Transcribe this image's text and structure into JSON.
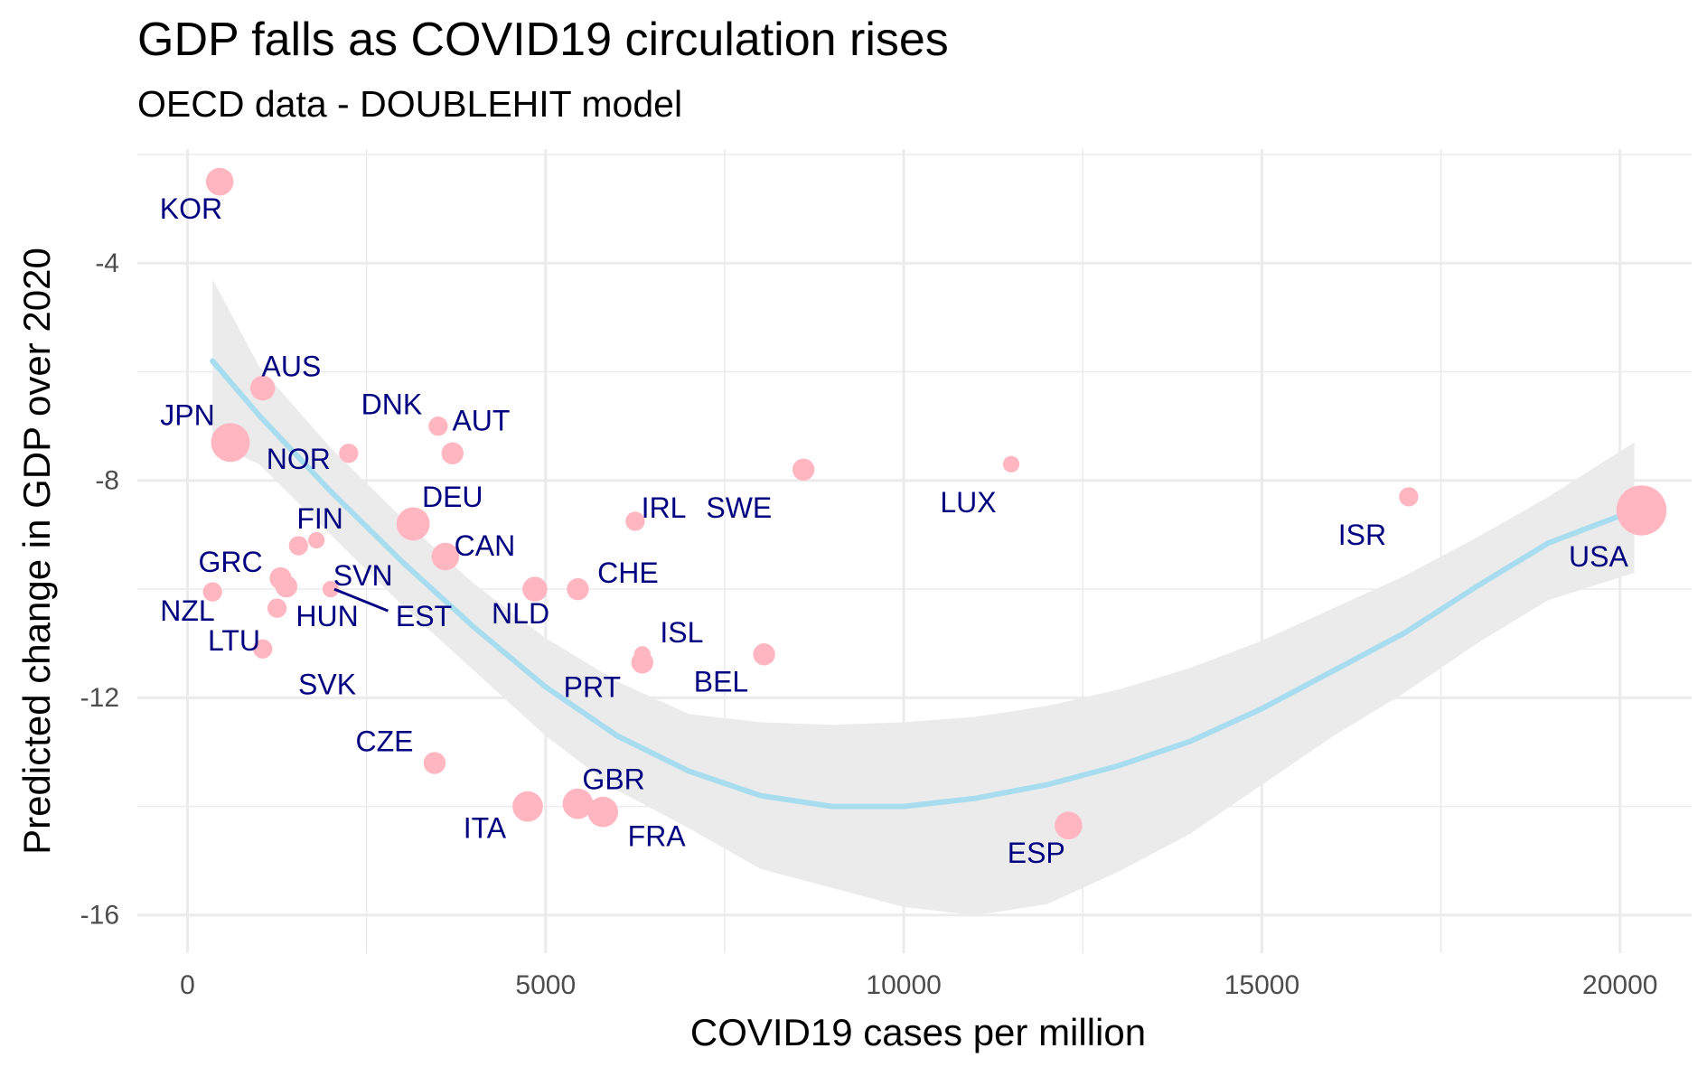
{
  "chart_data": {
    "type": "scatter",
    "title": "GDP falls as COVID19 circulation rises",
    "subtitle": "OECD data - DOUBLEHIT model",
    "xlabel": "COVID19 cases per million",
    "ylabel": "Predicted change in GDP over 2020",
    "xlim": [
      -700,
      21000
    ],
    "ylim": [
      -16.7,
      -1.9
    ],
    "x_ticks": [
      0,
      5000,
      10000,
      15000,
      20000
    ],
    "y_ticks": [
      -4,
      -8,
      -12,
      -16
    ],
    "x_tick_labels": [
      "0",
      "5000",
      "10000",
      "15000",
      "20000"
    ],
    "y_tick_labels": [
      "-4",
      "-8",
      "-12",
      "-16"
    ],
    "grid": true,
    "colors": {
      "point": "#ffb6c1",
      "label": "#000080",
      "smooth": "#a8dcef",
      "band": "#ebebeb",
      "grid": "#ebebeb"
    },
    "points": [
      {
        "code": "KOR",
        "x": 450,
        "y": -2.5,
        "size": 6
      },
      {
        "code": "AUS",
        "x": 1050,
        "y": -6.3,
        "size": 5
      },
      {
        "code": "JPN",
        "x": 600,
        "y": -7.3,
        "size": 10
      },
      {
        "code": "DNK",
        "x": 3500,
        "y": -7.0,
        "size": 3
      },
      {
        "code": "NOR",
        "x": 2250,
        "y": -7.5,
        "size": 3
      },
      {
        "code": "AUT",
        "x": 3700,
        "y": -7.5,
        "size": 4
      },
      {
        "code": "DEU",
        "x": 3150,
        "y": -8.8,
        "size": 8
      },
      {
        "code": "FIN",
        "x": 1550,
        "y": -9.2,
        "size": 3
      },
      {
        "code": "FIN2",
        "x": 1800,
        "y": -9.1,
        "size": 2
      },
      {
        "code": "CAN",
        "x": 3600,
        "y": -9.4,
        "size": 6
      },
      {
        "code": "GRC",
        "x": 1300,
        "y": -9.8,
        "size": 4
      },
      {
        "code": "GRC2",
        "x": 1380,
        "y": -9.95,
        "size": 4
      },
      {
        "code": "SVN",
        "x": 2000,
        "y": -10.0,
        "size": 2
      },
      {
        "code": "NZL",
        "x": 350,
        "y": -10.05,
        "size": 3
      },
      {
        "code": "HUN",
        "x": 1250,
        "y": -10.35,
        "size": 3
      },
      {
        "code": "LTU",
        "x": 1050,
        "y": -11.1,
        "size": 3
      },
      {
        "code": "NLD",
        "x": 4850,
        "y": -10.0,
        "size": 5
      },
      {
        "code": "CHE",
        "x": 5450,
        "y": -10.0,
        "size": 4
      },
      {
        "code": "IRL",
        "x": 6250,
        "y": -8.75,
        "size": 3
      },
      {
        "code": "SWE",
        "x": 8600,
        "y": -7.8,
        "size": 4
      },
      {
        "code": "LUX",
        "x": 11500,
        "y": -7.7,
        "size": 2
      },
      {
        "code": "ISR",
        "x": 17050,
        "y": -8.3,
        "size": 3
      },
      {
        "code": "USA",
        "x": 20300,
        "y": -8.55,
        "size": 14
      },
      {
        "code": "ISL",
        "x": 6350,
        "y": -11.2,
        "size": 2
      },
      {
        "code": "PRT",
        "x": 6350,
        "y": -11.35,
        "size": 4
      },
      {
        "code": "BEL",
        "x": 8050,
        "y": -11.2,
        "size": 4
      },
      {
        "code": "CZE",
        "x": 3450,
        "y": -13.2,
        "size": 4
      },
      {
        "code": "ITA",
        "x": 4750,
        "y": -14.0,
        "size": 7
      },
      {
        "code": "GBR",
        "x": 5450,
        "y": -13.95,
        "size": 7
      },
      {
        "code": "FRA",
        "x": 5800,
        "y": -14.1,
        "size": 7
      },
      {
        "code": "ESP",
        "x": 12300,
        "y": -14.35,
        "size": 6
      }
    ],
    "labels": [
      {
        "text": "KOR",
        "x": 50,
        "y": -3.0
      },
      {
        "text": "AUS",
        "x": 1450,
        "y": -5.9
      },
      {
        "text": "JPN",
        "x": 0,
        "y": -6.8
      },
      {
        "text": "DNK",
        "x": 2850,
        "y": -6.6
      },
      {
        "text": "NOR",
        "x": 1550,
        "y": -7.6
      },
      {
        "text": "AUT",
        "x": 4100,
        "y": -6.9
      },
      {
        "text": "DEU",
        "x": 3700,
        "y": -8.3
      },
      {
        "text": "FIN",
        "x": 1850,
        "y": -8.7
      },
      {
        "text": "CAN",
        "x": 4150,
        "y": -9.2
      },
      {
        "text": "GRC",
        "x": 600,
        "y": -9.5
      },
      {
        "text": "SVN",
        "x": 2450,
        "y": -9.75
      },
      {
        "text": "NZL",
        "x": 0,
        "y": -10.4
      },
      {
        "text": "HUN",
        "x": 1950,
        "y": -10.5
      },
      {
        "text": "EST",
        "x": 3300,
        "y": -10.5
      },
      {
        "text": "LTU",
        "x": 650,
        "y": -10.95
      },
      {
        "text": "SVK",
        "x": 1950,
        "y": -11.75
      },
      {
        "text": "NLD",
        "x": 4650,
        "y": -10.45
      },
      {
        "text": "CHE",
        "x": 6150,
        "y": -9.7
      },
      {
        "text": "IRL",
        "x": 6650,
        "y": -8.5
      },
      {
        "text": "SWE",
        "x": 7700,
        "y": -8.5
      },
      {
        "text": "LUX",
        "x": 10900,
        "y": -8.4
      },
      {
        "text": "ISR",
        "x": 16400,
        "y": -9.0
      },
      {
        "text": "USA",
        "x": 19700,
        "y": -9.4
      },
      {
        "text": "ISL",
        "x": 6900,
        "y": -10.8
      },
      {
        "text": "PRT",
        "x": 5650,
        "y": -11.8
      },
      {
        "text": "BEL",
        "x": 7450,
        "y": -11.7
      },
      {
        "text": "CZE",
        "x": 2750,
        "y": -12.8
      },
      {
        "text": "ITA",
        "x": 4150,
        "y": -14.4
      },
      {
        "text": "GBR",
        "x": 5950,
        "y": -13.5
      },
      {
        "text": "FRA",
        "x": 6550,
        "y": -14.55
      },
      {
        "text": "ESP",
        "x": 11850,
        "y": -14.85
      }
    ],
    "label_segments": [
      {
        "x1": 2050,
        "y1": -10.0,
        "x2": 2800,
        "y2": -10.4
      }
    ],
    "smooth": {
      "x": [
        350,
        1000,
        2000,
        3000,
        4000,
        5000,
        6000,
        7000,
        8000,
        9000,
        10000,
        11000,
        12000,
        13000,
        14000,
        15000,
        16000,
        17000,
        18000,
        19000,
        20200
      ],
      "y": [
        -5.8,
        -6.8,
        -8.2,
        -9.5,
        -10.7,
        -11.8,
        -12.7,
        -13.35,
        -13.8,
        -14.0,
        -14.0,
        -13.85,
        -13.6,
        -13.25,
        -12.8,
        -12.2,
        -11.5,
        -10.8,
        -9.95,
        -9.15,
        -8.55
      ],
      "upper": [
        -4.3,
        -5.9,
        -7.4,
        -8.7,
        -9.9,
        -10.9,
        -11.7,
        -12.3,
        -12.45,
        -12.5,
        -12.45,
        -12.35,
        -12.15,
        -11.85,
        -11.45,
        -10.95,
        -10.35,
        -9.75,
        -9.05,
        -8.3,
        -7.3
      ],
      "lower": [
        -7.3,
        -7.7,
        -9.0,
        -10.3,
        -11.5,
        -12.7,
        -13.7,
        -14.4,
        -15.15,
        -15.5,
        -15.85,
        -16.0,
        -15.8,
        -15.2,
        -14.5,
        -13.6,
        -12.7,
        -11.9,
        -11.0,
        -10.2,
        -9.7
      ]
    }
  }
}
